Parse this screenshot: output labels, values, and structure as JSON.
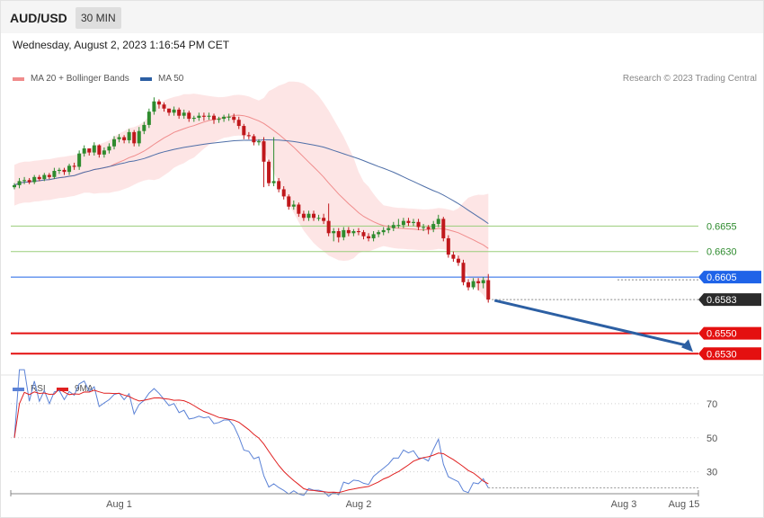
{
  "header": {
    "symbol": "AUD/USD",
    "interval": "30 MIN",
    "datetime": "Wednesday, August 2, 2023 1:16:54 PM CET"
  },
  "legend": {
    "ma20": "MA 20 + Bollinger Bands",
    "ma50": "MA 50",
    "credit": "Research © 2023 Trading Central",
    "rsi": "RSI",
    "rsi_ma": "9MA"
  },
  "colors": {
    "bull": "#2e8b2e",
    "bear": "#c0181c",
    "ma20": "#f08c8c",
    "band_fill": "#fde0e0",
    "ma50": "#4f6fa8",
    "resistance": "#9acd7a",
    "pivot": "#1f63e8",
    "support": "#e41010",
    "current": "#2b2b2b",
    "arrow": "#2c5fa3",
    "rsi": "#5b82d6",
    "rsi_ma": "#e02020"
  },
  "chart_data": [
    {
      "type": "candlestick",
      "title": "AUD/USD",
      "timeframe": "30 MIN",
      "x_labels": [
        "Aug 1",
        "Aug 2",
        "Aug 3",
        "Aug 15"
      ],
      "ylim": [
        0.651,
        0.6805
      ],
      "grid": false,
      "candles": {
        "t": [
          "Jul 31 13:30",
          "Jul 31 14:00",
          "Jul 31 14:30",
          "Jul 31 15:00",
          "Jul 31 15:30",
          "Jul 31 16:00",
          "Jul 31 16:30",
          "Jul 31 17:00",
          "Jul 31 17:30",
          "Jul 31 18:00",
          "Jul 31 18:30",
          "Jul 31 19:00",
          "Jul 31 19:30",
          "Jul 31 20:00",
          "Jul 31 20:30",
          "Jul 31 21:00",
          "Jul 31 21:30",
          "Jul 31 22:00",
          "Jul 31 22:30",
          "Jul 31 23:00",
          "Jul 31 23:30",
          "Aug 1 00:00",
          "Aug 1 00:30",
          "Aug 1 01:00",
          "Aug 1 01:30",
          "Aug 1 02:00",
          "Aug 1 02:30",
          "Aug 1 03:00",
          "Aug 1 03:30",
          "Aug 1 04:00",
          "Aug 1 04:30",
          "Aug 1 05:00",
          "Aug 1 05:30",
          "Aug 1 06:00",
          "Aug 1 06:30",
          "Aug 1 07:00",
          "Aug 1 07:30",
          "Aug 1 08:00",
          "Aug 1 08:30",
          "Aug 1 09:00",
          "Aug 1 09:30",
          "Aug 1 10:00",
          "Aug 1 10:30",
          "Aug 1 11:00",
          "Aug 1 11:30",
          "Aug 1 12:00",
          "Aug 1 12:30",
          "Aug 1 13:00",
          "Aug 1 13:30",
          "Aug 1 14:00",
          "Aug 1 14:30",
          "Aug 1 15:00",
          "Aug 1 15:30",
          "Aug 1 16:00",
          "Aug 1 16:30",
          "Aug 1 17:00",
          "Aug 1 17:30",
          "Aug 1 18:00",
          "Aug 1 18:30",
          "Aug 1 19:00",
          "Aug 1 19:30",
          "Aug 1 20:00",
          "Aug 1 20:30",
          "Aug 1 21:00",
          "Aug 1 21:30",
          "Aug 1 22:00",
          "Aug 1 22:30",
          "Aug 1 23:00",
          "Aug 1 23:30",
          "Aug 2 00:00",
          "Aug 2 00:30",
          "Aug 2 01:00",
          "Aug 2 01:30",
          "Aug 2 02:00",
          "Aug 2 02:30",
          "Aug 2 03:00",
          "Aug 2 03:30",
          "Aug 2 04:00",
          "Aug 2 04:30",
          "Aug 2 05:00",
          "Aug 2 05:30",
          "Aug 2 06:00",
          "Aug 2 06:30",
          "Aug 2 07:00",
          "Aug 2 07:30",
          "Aug 2 08:00",
          "Aug 2 08:30",
          "Aug 2 09:00",
          "Aug 2 09:30",
          "Aug 2 10:00",
          "Aug 2 10:30",
          "Aug 2 11:00",
          "Aug 2 11:30",
          "Aug 2 12:00",
          "Aug 2 12:30",
          "Aug 2 13:00"
        ],
        "open": [
          0.6693,
          0.6695,
          0.6699,
          0.67,
          0.6698,
          0.6703,
          0.6701,
          0.6705,
          0.6703,
          0.6709,
          0.671,
          0.6708,
          0.6714,
          0.6713,
          0.6726,
          0.6731,
          0.6727,
          0.6734,
          0.6725,
          0.6729,
          0.6733,
          0.674,
          0.6742,
          0.6739,
          0.6747,
          0.6736,
          0.6748,
          0.6754,
          0.6767,
          0.6777,
          0.6774,
          0.677,
          0.6766,
          0.6769,
          0.6763,
          0.6766,
          0.676,
          0.6761,
          0.6763,
          0.6762,
          0.6763,
          0.6759,
          0.676,
          0.6762,
          0.6762,
          0.6759,
          0.6753,
          0.6744,
          0.6743,
          0.6737,
          0.6738,
          0.6718,
          0.6697,
          0.6699,
          0.6691,
          0.6684,
          0.6674,
          0.6676,
          0.6667,
          0.6663,
          0.6667,
          0.6663,
          0.6663,
          0.666,
          0.6648,
          0.665,
          0.6644,
          0.6651,
          0.6648,
          0.665,
          0.6649,
          0.6645,
          0.6643,
          0.6647,
          0.6649,
          0.6651,
          0.6653,
          0.6656,
          0.6656,
          0.666,
          0.6658,
          0.6659,
          0.6654,
          0.6654,
          0.6652,
          0.6657,
          0.6662,
          0.6643,
          0.6627,
          0.6623,
          0.6619,
          0.66,
          0.6595,
          0.6601,
          0.6599,
          0.6602
        ],
        "close": [
          0.6695,
          0.6699,
          0.67,
          0.6698,
          0.6703,
          0.6701,
          0.6705,
          0.6703,
          0.6709,
          0.671,
          0.6708,
          0.6714,
          0.6713,
          0.6726,
          0.6731,
          0.6727,
          0.6734,
          0.6725,
          0.6729,
          0.6733,
          0.674,
          0.6742,
          0.6739,
          0.6747,
          0.6736,
          0.6748,
          0.6754,
          0.6767,
          0.6777,
          0.6774,
          0.677,
          0.6766,
          0.6769,
          0.6763,
          0.6766,
          0.676,
          0.6761,
          0.6763,
          0.6762,
          0.6763,
          0.6759,
          0.676,
          0.6762,
          0.6762,
          0.6759,
          0.6753,
          0.6744,
          0.6743,
          0.6737,
          0.6738,
          0.6718,
          0.6697,
          0.6699,
          0.6691,
          0.6684,
          0.6674,
          0.6676,
          0.6667,
          0.6663,
          0.6667,
          0.6663,
          0.6663,
          0.666,
          0.6648,
          0.665,
          0.6644,
          0.6651,
          0.6648,
          0.665,
          0.6649,
          0.6645,
          0.6643,
          0.6647,
          0.6649,
          0.6651,
          0.6653,
          0.6656,
          0.6656,
          0.666,
          0.6658,
          0.6659,
          0.6654,
          0.6654,
          0.6652,
          0.6657,
          0.6662,
          0.6643,
          0.6627,
          0.6623,
          0.6619,
          0.66,
          0.6595,
          0.6601,
          0.6599,
          0.6602,
          0.6583
        ],
        "high": [
          0.6697,
          0.6702,
          0.6703,
          0.6702,
          0.6705,
          0.6705,
          0.6707,
          0.6707,
          0.6712,
          0.6712,
          0.6712,
          0.6716,
          0.6717,
          0.6729,
          0.6734,
          0.673,
          0.6737,
          0.6735,
          0.6732,
          0.6736,
          0.6743,
          0.6745,
          0.6744,
          0.675,
          0.6749,
          0.6752,
          0.6757,
          0.677,
          0.6781,
          0.6779,
          0.6776,
          0.677,
          0.6772,
          0.6771,
          0.6769,
          0.6768,
          0.6763,
          0.6766,
          0.6766,
          0.6766,
          0.6765,
          0.6762,
          0.6764,
          0.6765,
          0.6765,
          0.6762,
          0.6755,
          0.6747,
          0.6745,
          0.674,
          0.6742,
          0.672,
          0.6742,
          0.6702,
          0.6694,
          0.6686,
          0.668,
          0.6678,
          0.667,
          0.667,
          0.667,
          0.6666,
          0.6667,
          0.6677,
          0.6653,
          0.6653,
          0.6654,
          0.6654,
          0.6652,
          0.6653,
          0.6651,
          0.6648,
          0.665,
          0.6651,
          0.6654,
          0.6656,
          0.6659,
          0.6662,
          0.6663,
          0.6663,
          0.6662,
          0.6662,
          0.6657,
          0.6656,
          0.666,
          0.6666,
          0.6664,
          0.6646,
          0.663,
          0.6626,
          0.6622,
          0.6603,
          0.6604,
          0.6604,
          0.6605,
          0.6608
        ],
        "low": [
          0.6691,
          0.6692,
          0.6696,
          0.6696,
          0.6696,
          0.6699,
          0.6699,
          0.6701,
          0.6701,
          0.6706,
          0.6705,
          0.6705,
          0.671,
          0.671,
          0.6723,
          0.6724,
          0.6724,
          0.6722,
          0.6722,
          0.6726,
          0.673,
          0.6737,
          0.6736,
          0.6736,
          0.6733,
          0.6733,
          0.6745,
          0.6751,
          0.6764,
          0.677,
          0.6767,
          0.6763,
          0.6763,
          0.676,
          0.676,
          0.6757,
          0.6757,
          0.6758,
          0.6758,
          0.6759,
          0.6755,
          0.6756,
          0.6757,
          0.6758,
          0.6756,
          0.675,
          0.674,
          0.674,
          0.6734,
          0.6734,
          0.6693,
          0.6694,
          0.6694,
          0.6688,
          0.6681,
          0.6671,
          0.6671,
          0.6664,
          0.666,
          0.666,
          0.666,
          0.666,
          0.6657,
          0.6645,
          0.664,
          0.6639,
          0.6641,
          0.6645,
          0.6645,
          0.6646,
          0.6642,
          0.664,
          0.664,
          0.6644,
          0.6646,
          0.6648,
          0.665,
          0.6653,
          0.6653,
          0.6655,
          0.6655,
          0.6651,
          0.665,
          0.6647,
          0.6649,
          0.6654,
          0.664,
          0.6624,
          0.662,
          0.6616,
          0.6597,
          0.6592,
          0.6593,
          0.6592,
          0.6594,
          0.658
        ]
      },
      "indicators": [
        "MA 20 + Bollinger Bands",
        "MA 50"
      ],
      "levels": [
        {
          "value": 0.6655,
          "label": "0.6655",
          "kind": "resistance"
        },
        {
          "value": 0.663,
          "label": "0.6630",
          "kind": "resistance"
        },
        {
          "value": 0.6605,
          "label": "0.6605",
          "kind": "pivot"
        },
        {
          "value": 0.6583,
          "label": "0.6583",
          "kind": "current"
        },
        {
          "value": 0.655,
          "label": "0.6550",
          "kind": "support"
        },
        {
          "value": 0.653,
          "label": "0.6530",
          "kind": "support"
        }
      ],
      "arrow": {
        "from": 0.6583,
        "to": 0.653,
        "direction": "down"
      }
    },
    {
      "type": "line",
      "series": [
        {
          "name": "RSI"
        },
        {
          "name": "9MA"
        }
      ],
      "ylim": [
        15,
        80
      ],
      "yticks": [
        30,
        50,
        70
      ],
      "x_labels": [
        "Aug 1",
        "Aug 2",
        "Aug 3",
        "Aug 15"
      ]
    }
  ]
}
